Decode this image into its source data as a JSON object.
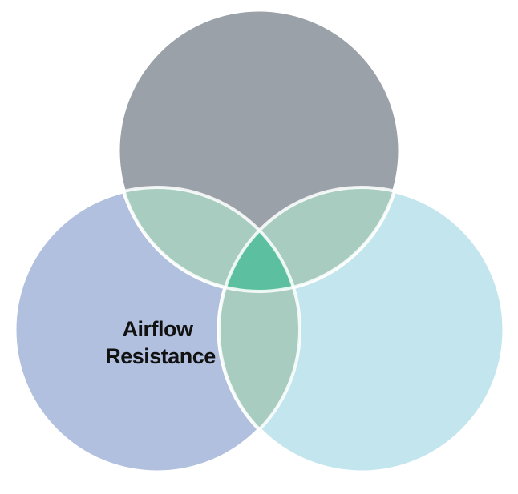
{
  "diagram": {
    "type": "venn",
    "circles": [
      {
        "id": "top",
        "label": "",
        "color": "#9aa1a8"
      },
      {
        "id": "left",
        "label_lines": [
          "Airflow",
          "Resistance"
        ],
        "color": "#b0c0de"
      },
      {
        "id": "right",
        "label": "",
        "color": "#c3e6ee"
      }
    ],
    "overlap_color": "#a8cdc0",
    "center_color": "#5cc0a0"
  }
}
